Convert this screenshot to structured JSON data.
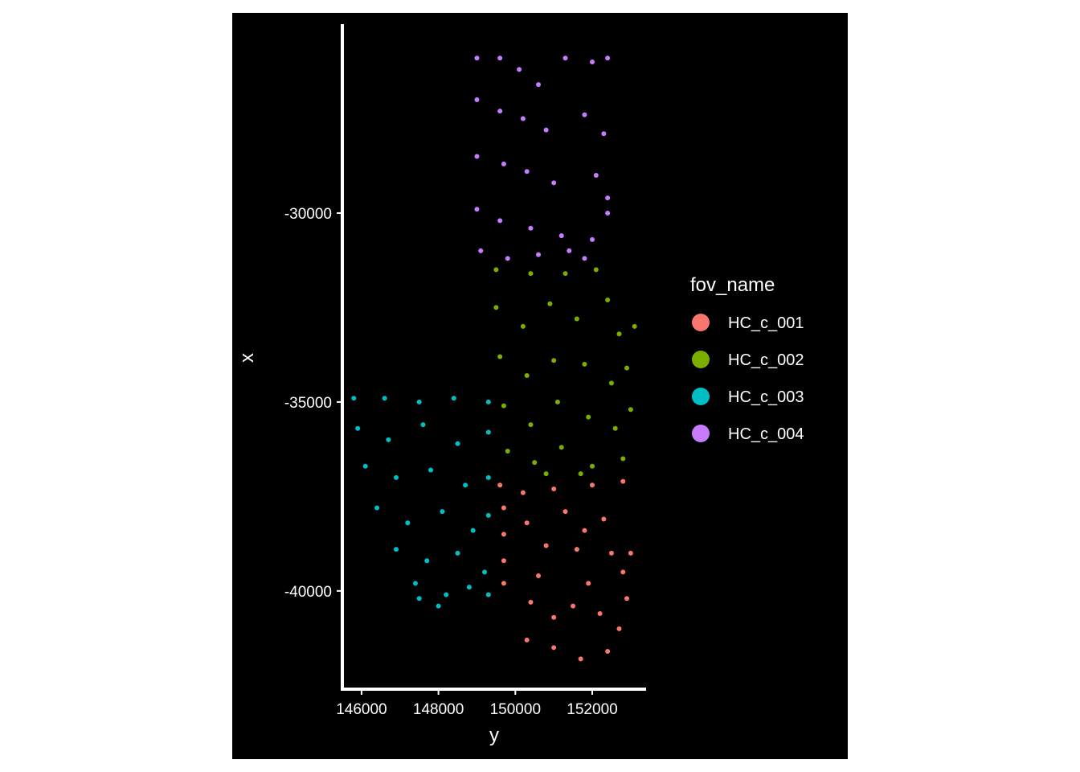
{
  "chart_data": {
    "type": "scatter",
    "title": "",
    "xlabel": "y",
    "ylabel": "x",
    "xlim": [
      145500,
      153400
    ],
    "ylim": [
      -42600,
      -25000
    ],
    "x_ticks": [
      146000,
      148000,
      150000,
      152000
    ],
    "x_tick_labels": [
      "146000",
      "148000",
      "150000",
      "152000"
    ],
    "y_ticks": [
      -30000,
      -35000,
      -40000
    ],
    "y_tick_labels": [
      "-30000",
      "-35000",
      "-40000"
    ],
    "background": "#000000",
    "grid": false,
    "legend": {
      "title": "fov_name",
      "position": "right",
      "entries": [
        {
          "label": "HC_c_001",
          "color": "#F8766D"
        },
        {
          "label": "HC_c_002",
          "color": "#7CAE00"
        },
        {
          "label": "HC_c_003",
          "color": "#00BFC4"
        },
        {
          "label": "HC_c_004",
          "color": "#C77CFF"
        }
      ]
    },
    "series": [
      {
        "name": "HC_c_001",
        "color": "#F8766D",
        "points": [
          [
            149600,
            -37200
          ],
          [
            150200,
            -37400
          ],
          [
            151000,
            -37300
          ],
          [
            152000,
            -37200
          ],
          [
            152800,
            -37100
          ],
          [
            149700,
            -37800
          ],
          [
            149700,
            -38500
          ],
          [
            149700,
            -39200
          ],
          [
            149700,
            -39800
          ],
          [
            150300,
            -38200
          ],
          [
            150800,
            -38800
          ],
          [
            151300,
            -37900
          ],
          [
            151800,
            -38400
          ],
          [
            152300,
            -38100
          ],
          [
            152500,
            -39000
          ],
          [
            151600,
            -38900
          ],
          [
            150600,
            -39600
          ],
          [
            151900,
            -39800
          ],
          [
            152800,
            -39500
          ],
          [
            153000,
            -39000
          ],
          [
            150400,
            -40300
          ],
          [
            151000,
            -40700
          ],
          [
            151500,
            -40400
          ],
          [
            152200,
            -40600
          ],
          [
            152700,
            -41000
          ],
          [
            150300,
            -41300
          ],
          [
            151000,
            -41500
          ],
          [
            151700,
            -41800
          ],
          [
            152400,
            -41600
          ],
          [
            152900,
            -40200
          ]
        ]
      },
      {
        "name": "HC_c_002",
        "color": "#7CAE00",
        "points": [
          [
            149500,
            -31500
          ],
          [
            150400,
            -31600
          ],
          [
            151300,
            -31600
          ],
          [
            152100,
            -31500
          ],
          [
            149500,
            -32500
          ],
          [
            150200,
            -33000
          ],
          [
            150900,
            -32400
          ],
          [
            151600,
            -32800
          ],
          [
            152400,
            -32300
          ],
          [
            152700,
            -33200
          ],
          [
            149600,
            -33800
          ],
          [
            150300,
            -34300
          ],
          [
            151000,
            -33900
          ],
          [
            151800,
            -34000
          ],
          [
            152500,
            -34500
          ],
          [
            152900,
            -34100
          ],
          [
            149700,
            -35100
          ],
          [
            150400,
            -35600
          ],
          [
            151100,
            -35000
          ],
          [
            151900,
            -35400
          ],
          [
            152600,
            -35700
          ],
          [
            153000,
            -35200
          ],
          [
            149800,
            -36300
          ],
          [
            150500,
            -36600
          ],
          [
            151200,
            -36200
          ],
          [
            152000,
            -36700
          ],
          [
            152800,
            -36500
          ],
          [
            153100,
            -33000
          ],
          [
            150800,
            -36900
          ],
          [
            151700,
            -36900
          ]
        ]
      },
      {
        "name": "HC_c_003",
        "color": "#00BFC4",
        "points": [
          [
            145800,
            -34900
          ],
          [
            146600,
            -34900
          ],
          [
            147500,
            -35000
          ],
          [
            148400,
            -34900
          ],
          [
            149300,
            -35000
          ],
          [
            145900,
            -35700
          ],
          [
            146700,
            -36000
          ],
          [
            147600,
            -35600
          ],
          [
            148500,
            -36100
          ],
          [
            149300,
            -35800
          ],
          [
            146100,
            -36700
          ],
          [
            146900,
            -37000
          ],
          [
            147800,
            -36800
          ],
          [
            148700,
            -37200
          ],
          [
            149300,
            -37000
          ],
          [
            146400,
            -37800
          ],
          [
            147200,
            -38200
          ],
          [
            148100,
            -37900
          ],
          [
            148900,
            -38400
          ],
          [
            149300,
            -38000
          ],
          [
            146900,
            -38900
          ],
          [
            147700,
            -39200
          ],
          [
            148500,
            -39000
          ],
          [
            149200,
            -39500
          ],
          [
            147400,
            -39800
          ],
          [
            148200,
            -40100
          ],
          [
            148800,
            -39900
          ],
          [
            149300,
            -40100
          ],
          [
            148000,
            -40400
          ],
          [
            147500,
            -40200
          ]
        ]
      },
      {
        "name": "HC_c_004",
        "color": "#C77CFF",
        "points": [
          [
            149000,
            -25900
          ],
          [
            149600,
            -25900
          ],
          [
            150100,
            -26200
          ],
          [
            150600,
            -26600
          ],
          [
            151300,
            -25900
          ],
          [
            152000,
            -26000
          ],
          [
            152400,
            -25900
          ],
          [
            149000,
            -27000
          ],
          [
            149600,
            -27300
          ],
          [
            150200,
            -27500
          ],
          [
            150800,
            -27800
          ],
          [
            151800,
            -27400
          ],
          [
            152300,
            -27900
          ],
          [
            149000,
            -28500
          ],
          [
            149700,
            -28700
          ],
          [
            150300,
            -28900
          ],
          [
            151000,
            -29200
          ],
          [
            152100,
            -29000
          ],
          [
            152400,
            -29600
          ],
          [
            149000,
            -29900
          ],
          [
            149600,
            -30200
          ],
          [
            150400,
            -30400
          ],
          [
            151200,
            -30600
          ],
          [
            152400,
            -30000
          ],
          [
            149100,
            -31000
          ],
          [
            149800,
            -31200
          ],
          [
            150600,
            -31100
          ],
          [
            151400,
            -31000
          ],
          [
            151800,
            -31200
          ],
          [
            152000,
            -30700
          ]
        ]
      }
    ]
  }
}
